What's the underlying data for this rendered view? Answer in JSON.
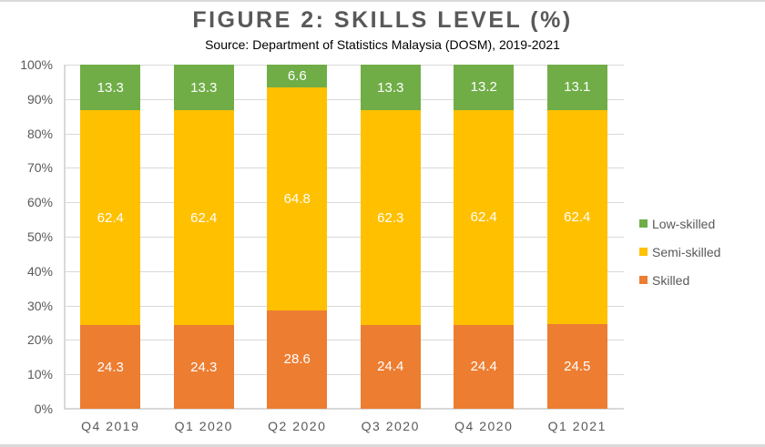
{
  "title": "FIGURE 2: SKILLS LEVEL (%)",
  "subtitle": "Source: Department of Statistics Malaysia (DOSM), 2019-2021",
  "colors": {
    "low_skilled": "#70ad47",
    "semi_skilled": "#ffc000",
    "skilled": "#ed7d31"
  },
  "y_ticks": [
    "0%",
    "10%",
    "20%",
    "30%",
    "40%",
    "50%",
    "60%",
    "70%",
    "80%",
    "90%",
    "100%"
  ],
  "x_ticks": [
    "Q4 2019",
    "Q1 2020",
    "Q2 2020",
    "Q3 2020",
    "Q4 2020",
    "Q1 2021"
  ],
  "legend": [
    "Low-skilled",
    "Semi-skilled",
    "Skilled"
  ],
  "chart_data": {
    "type": "bar",
    "stacked": true,
    "percent_stacked": true,
    "title": "FIGURE 2: SKILLS LEVEL (%)",
    "subtitle": "Source: Department of Statistics Malaysia (DOSM), 2019-2021",
    "xlabel": "",
    "ylabel": "",
    "ylim": [
      0,
      100
    ],
    "y_tick_format": "percent",
    "grid": true,
    "legend_position": "right",
    "categories": [
      "Q4 2019",
      "Q1 2020",
      "Q2 2020",
      "Q3 2020",
      "Q4 2020",
      "Q1 2021"
    ],
    "series": [
      {
        "name": "Skilled",
        "color": "#ed7d31",
        "values": [
          24.3,
          24.3,
          28.6,
          24.4,
          24.4,
          24.5
        ]
      },
      {
        "name": "Semi-skilled",
        "color": "#ffc000",
        "values": [
          62.4,
          62.4,
          64.8,
          62.3,
          62.4,
          62.4
        ]
      },
      {
        "name": "Low-skilled",
        "color": "#70ad47",
        "values": [
          13.3,
          13.3,
          6.6,
          13.3,
          13.2,
          13.1
        ]
      }
    ]
  }
}
